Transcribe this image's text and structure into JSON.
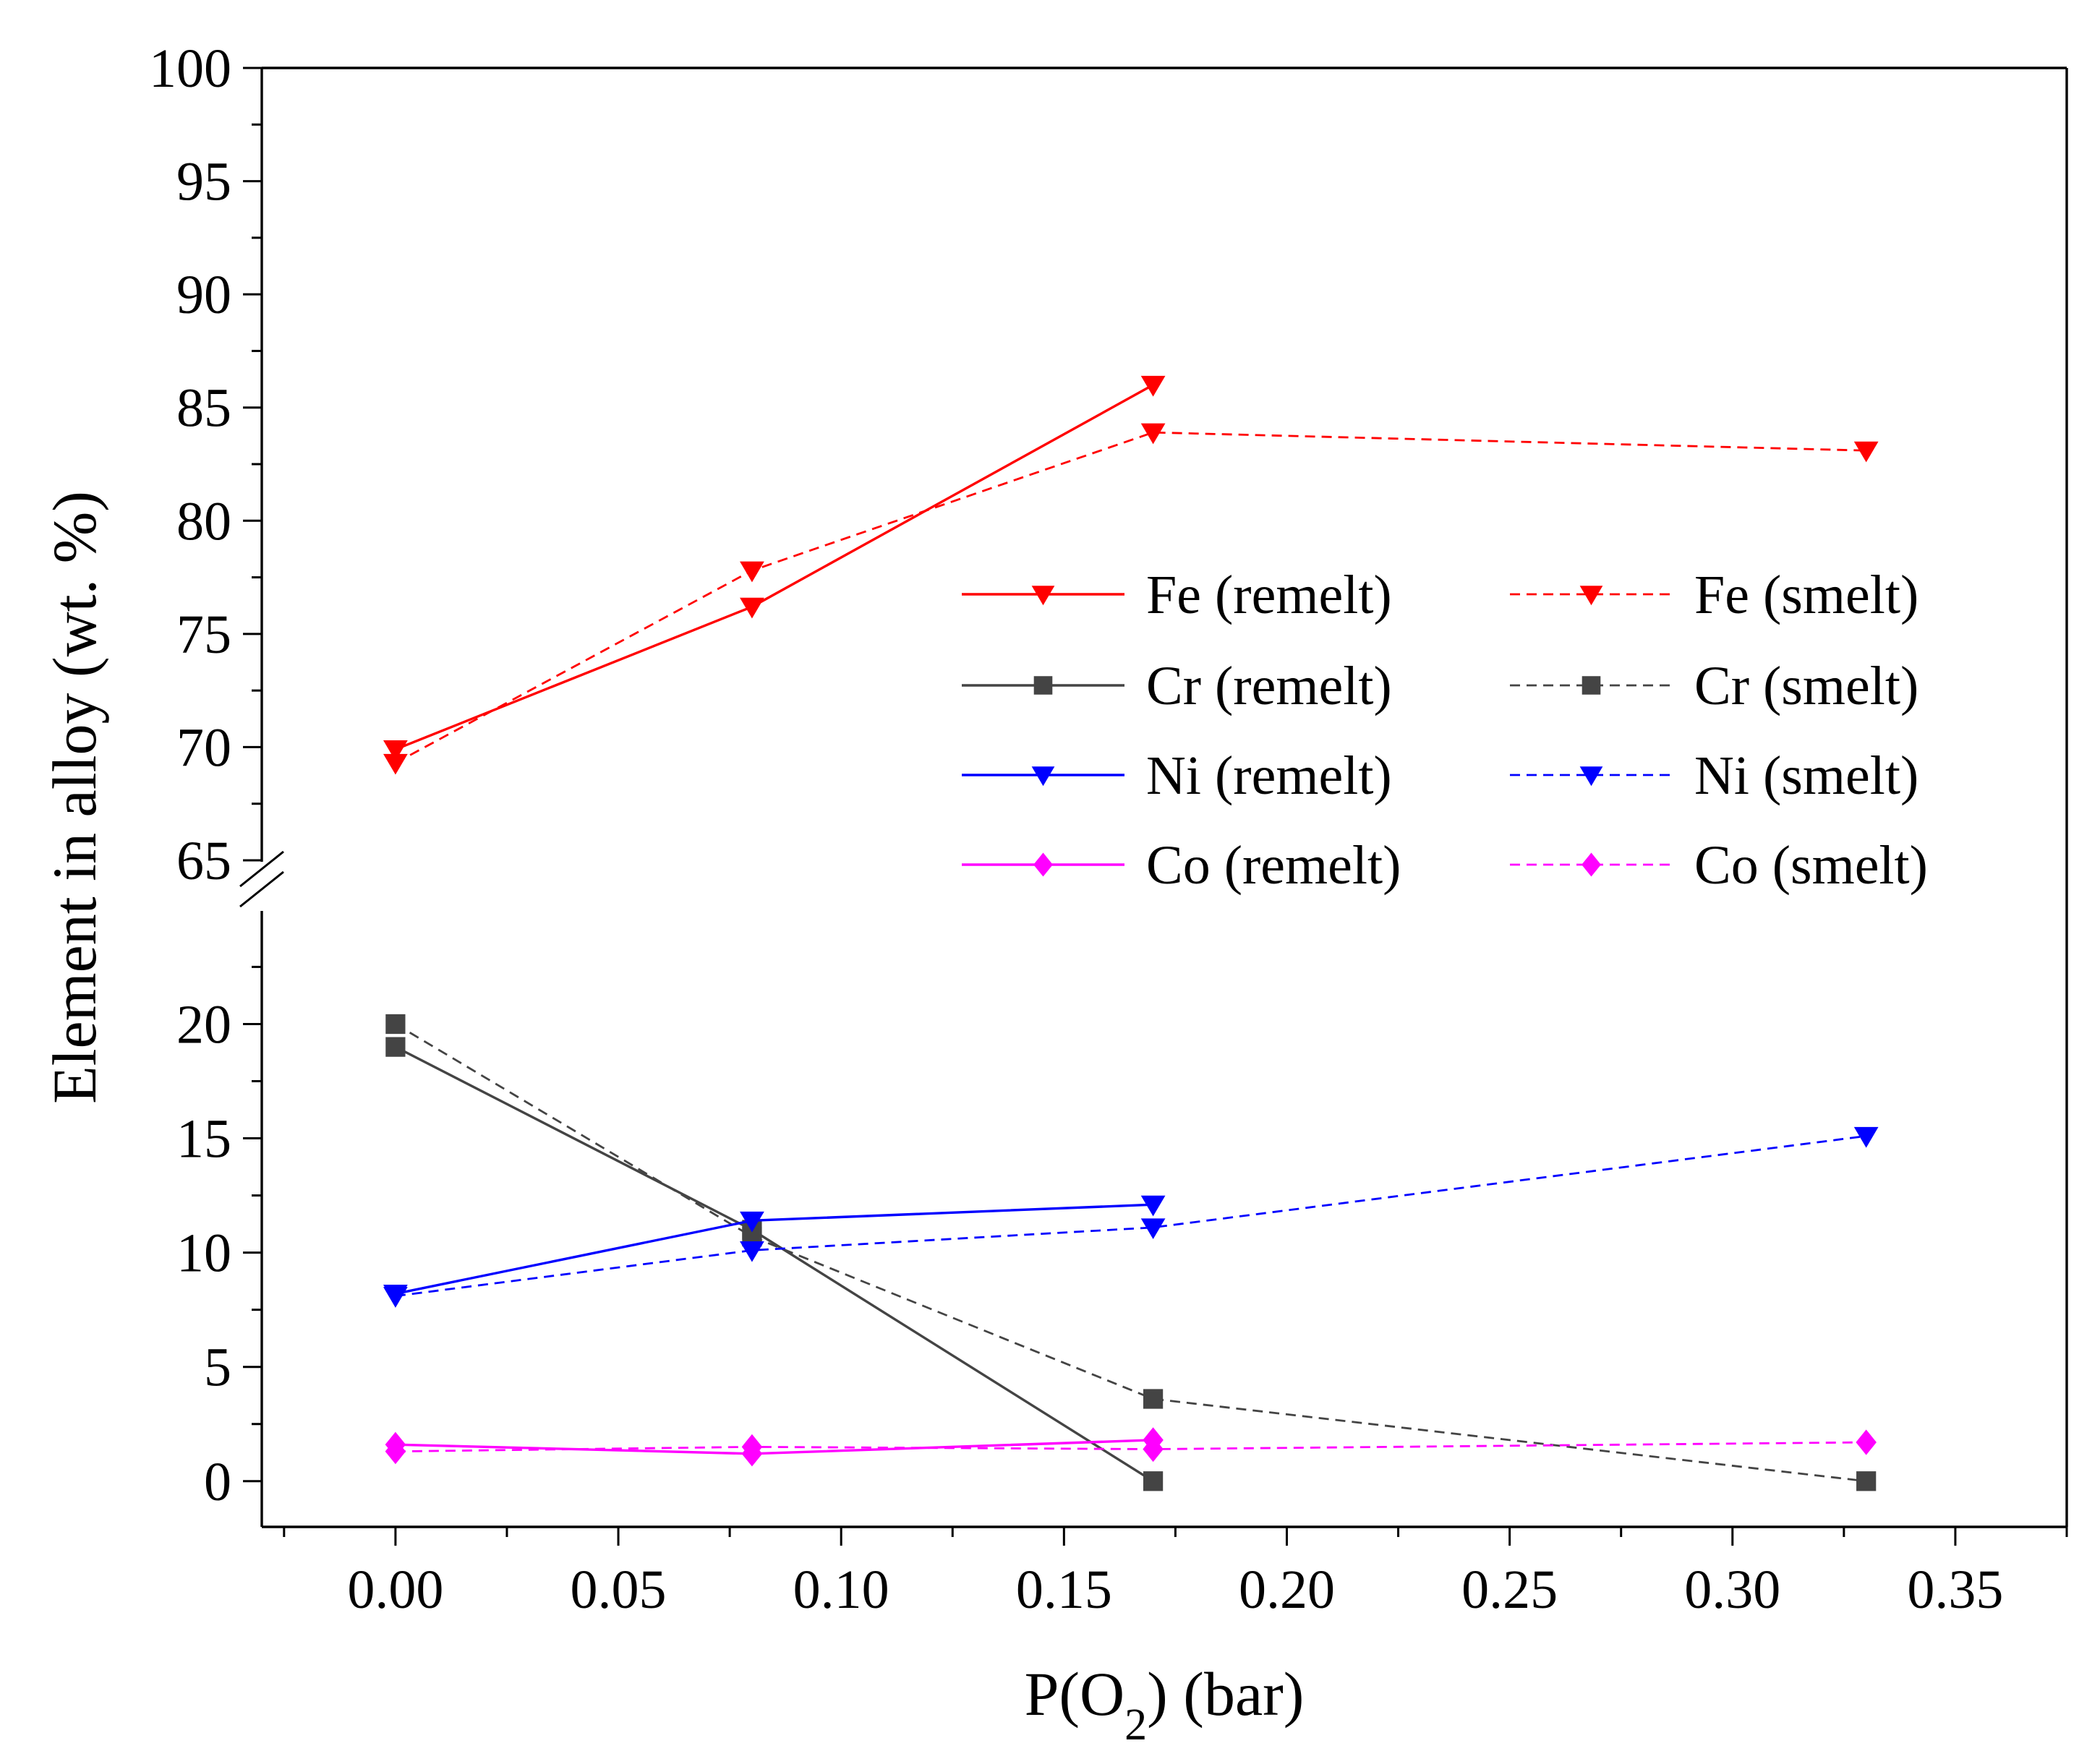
{
  "chart_data": {
    "type": "line",
    "title": "",
    "xlabel": "P(O2) (bar)",
    "xlabel_parts": {
      "before": "P(O",
      "subscript": "2",
      "after": ") (bar)"
    },
    "ylabel": "Element in alloy (wt. %)",
    "xlim": [
      -0.03,
      0.375
    ],
    "xticks": [
      0.0,
      0.05,
      0.1,
      0.15,
      0.2,
      0.25,
      0.3,
      0.35
    ],
    "xtick_labels": [
      "0.00",
      "0.05",
      "0.10",
      "0.15",
      "0.20",
      "0.25",
      "0.30",
      "0.35"
    ],
    "y_axis_break": {
      "lower_range": [
        -2,
        24
      ],
      "upper_range": [
        65,
        100
      ]
    },
    "yticks": [
      0,
      5,
      10,
      15,
      20,
      65,
      70,
      75,
      80,
      85,
      90,
      95,
      100
    ],
    "ytick_labels": [
      "0",
      "5",
      "10",
      "15",
      "20",
      "65",
      "70",
      "75",
      "80",
      "85",
      "90",
      "95",
      "100"
    ],
    "legend_location": "center-right",
    "series": [
      {
        "name": "Fe (remelt)",
        "color": "#ff0000",
        "style": "solid",
        "marker": "triangle-down",
        "x": [
          0.0,
          0.08,
          0.17
        ],
        "values": [
          69.9,
          76.2,
          86.0
        ]
      },
      {
        "name": "Fe (smelt)",
        "color": "#ff0000",
        "style": "dashed",
        "marker": "triangle-down",
        "x": [
          0.0,
          0.08,
          0.17,
          0.33
        ],
        "values": [
          69.3,
          77.8,
          83.9,
          83.1
        ]
      },
      {
        "name": "Cr (remelt)",
        "color": "#444444",
        "style": "solid",
        "marker": "square",
        "x": [
          0.0,
          0.08,
          0.17
        ],
        "values": [
          19.0,
          11.0,
          0.0
        ]
      },
      {
        "name": "Cr (smelt)",
        "color": "#444444",
        "style": "dashed",
        "marker": "square",
        "x": [
          0.0,
          0.08,
          0.17,
          0.33
        ],
        "values": [
          20.0,
          10.7,
          3.6,
          0.0
        ]
      },
      {
        "name": "Ni (remelt)",
        "color": "#0000ff",
        "style": "solid",
        "marker": "triangle-down",
        "x": [
          0.0,
          0.08,
          0.17
        ],
        "values": [
          8.2,
          11.4,
          12.1
        ]
      },
      {
        "name": "Ni (smelt)",
        "color": "#0000ff",
        "style": "dashed",
        "marker": "triangle-down",
        "x": [
          0.0,
          0.08,
          0.17,
          0.33
        ],
        "values": [
          8.1,
          10.1,
          11.1,
          15.1
        ]
      },
      {
        "name": "Co (remelt)",
        "color": "#ff00ff",
        "style": "solid",
        "marker": "diamond",
        "x": [
          0.0,
          0.08,
          0.17
        ],
        "values": [
          1.6,
          1.2,
          1.8
        ]
      },
      {
        "name": "Co (smelt)",
        "color": "#ff00ff",
        "style": "dashed",
        "marker": "diamond",
        "x": [
          0.0,
          0.08,
          0.17,
          0.33
        ],
        "values": [
          1.3,
          1.5,
          1.4,
          1.7
        ]
      }
    ]
  }
}
